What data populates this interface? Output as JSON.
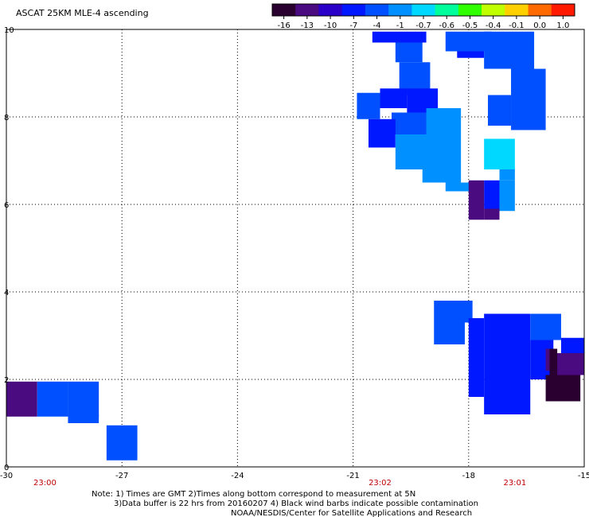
{
  "title": "ASCAT 25KM MLE-4 ascending",
  "colorbar": {
    "labels": [
      "-16",
      "-13",
      "-10",
      "-7",
      "-4",
      "-1",
      "-0.7",
      "-0.6",
      "-0.5",
      "-0.4",
      "-0.1",
      "0.0",
      "1.0"
    ],
    "colors": [
      "#2a0030",
      "#4a0a80",
      "#2a00c8",
      "#0018ff",
      "#0050ff",
      "#0090ff",
      "#00d8ff",
      "#00ff9c",
      "#30ff00",
      "#c0ff00",
      "#ffd000",
      "#ff6a00",
      "#ff1a00"
    ]
  },
  "axes": {
    "x_ticks": [
      "-30",
      "-27",
      "-24",
      "-21",
      "-18",
      "-15"
    ],
    "y_ticks": [
      "0",
      "2",
      "4",
      "6",
      "8",
      "10"
    ],
    "x_range": [
      -30,
      -15
    ],
    "y_range": [
      0,
      10
    ]
  },
  "pass_times": [
    {
      "lon": -29,
      "label": "23:00"
    },
    {
      "lon": -20.3,
      "label": "23:02"
    },
    {
      "lon": -16.8,
      "label": "23:01"
    }
  ],
  "notes": {
    "line1": "Note: 1) Times are GMT 2)Times along bottom correspond to measurement at 5N",
    "line2": "3)Data buffer is 22 hrs from 20160207 4) Black wind barbs indicate possible contamination",
    "line3": "NOAA/NESDIS/Center for Satellite Applications and Research"
  },
  "chart_data": {
    "type": "heatmap",
    "title": "ASCAT 25KM MLE-4 ascending",
    "xlim": [
      -30,
      -15
    ],
    "ylim": [
      0,
      10
    ],
    "cells": [
      {
        "lon0": -30,
        "lon1": -29.2,
        "lat0": 1.15,
        "lat1": 1.95,
        "color": "#4a0a80"
      },
      {
        "lon0": -29.2,
        "lon1": -28.4,
        "lat0": 1.15,
        "lat1": 1.95,
        "color": "#0050ff"
      },
      {
        "lon0": -28.4,
        "lon1": -27.6,
        "lat0": 1.15,
        "lat1": 1.95,
        "color": "#0050ff"
      },
      {
        "lon0": -28.4,
        "lon1": -27.6,
        "lat0": 1.0,
        "lat1": 1.2,
        "color": "#0050ff"
      },
      {
        "lon0": -27.4,
        "lon1": -26.6,
        "lat0": 0.15,
        "lat1": 0.95,
        "color": "#0050ff"
      },
      {
        "lon0": -20.5,
        "lon1": -19.1,
        "lat0": 9.7,
        "lat1": 9.95,
        "color": "#0018ff"
      },
      {
        "lon0": -19.9,
        "lon1": -19.2,
        "lat0": 9.25,
        "lat1": 9.7,
        "color": "#0050ff"
      },
      {
        "lon0": -19.8,
        "lon1": -19.0,
        "lat0": 8.5,
        "lat1": 9.25,
        "color": "#0050ff"
      },
      {
        "lon0": -20.3,
        "lon1": -19.6,
        "lat0": 8.2,
        "lat1": 8.65,
        "color": "#0018ff"
      },
      {
        "lon0": -19.6,
        "lon1": -18.8,
        "lat0": 8.1,
        "lat1": 8.65,
        "color": "#0018ff"
      },
      {
        "lon0": -20.9,
        "lon1": -20.3,
        "lat0": 7.95,
        "lat1": 8.55,
        "color": "#0050ff"
      },
      {
        "lon0": -20.0,
        "lon1": -19.0,
        "lat0": 7.6,
        "lat1": 8.1,
        "color": "#0050ff"
      },
      {
        "lon0": -19.1,
        "lon1": -18.2,
        "lat0": 7.6,
        "lat1": 8.2,
        "color": "#0090ff"
      },
      {
        "lon0": -20.6,
        "lon1": -19.9,
        "lat0": 7.3,
        "lat1": 7.95,
        "color": "#0018ff"
      },
      {
        "lon0": -19.9,
        "lon1": -18.2,
        "lat0": 6.8,
        "lat1": 7.6,
        "color": "#0090ff"
      },
      {
        "lon0": -19.2,
        "lon1": -18.2,
        "lat0": 6.5,
        "lat1": 6.8,
        "color": "#0090ff"
      },
      {
        "lon0": -18.6,
        "lon1": -17.8,
        "lat0": 6.3,
        "lat1": 6.5,
        "color": "#0090ff"
      },
      {
        "lon0": -18.6,
        "lon1": -17.4,
        "lat0": 9.5,
        "lat1": 9.95,
        "color": "#0050ff"
      },
      {
        "lon0": -18.3,
        "lon1": -17.6,
        "lat0": 9.35,
        "lat1": 9.5,
        "color": "#0018ff"
      },
      {
        "lon0": -17.6,
        "lon1": -16.3,
        "lat0": 9.1,
        "lat1": 9.95,
        "color": "#0050ff"
      },
      {
        "lon0": -16.9,
        "lon1": -16.0,
        "lat0": 8.5,
        "lat1": 9.1,
        "color": "#0050ff"
      },
      {
        "lon0": -17.5,
        "lon1": -16.9,
        "lat0": 7.8,
        "lat1": 8.5,
        "color": "#0050ff"
      },
      {
        "lon0": -16.9,
        "lon1": -16.0,
        "lat0": 7.7,
        "lat1": 8.5,
        "color": "#0050ff"
      },
      {
        "lon0": -17.6,
        "lon1": -16.8,
        "lat0": 6.8,
        "lat1": 7.5,
        "color": "#00d8ff"
      },
      {
        "lon0": -17.2,
        "lon1": -16.8,
        "lat0": 6.55,
        "lat1": 6.8,
        "color": "#0090ff"
      },
      {
        "lon0": -17.6,
        "lon1": -17.2,
        "lat0": 5.9,
        "lat1": 6.55,
        "color": "#0018ff"
      },
      {
        "lon0": -17.2,
        "lon1": -16.8,
        "lat0": 5.85,
        "lat1": 6.55,
        "color": "#0090ff"
      },
      {
        "lon0": -18.0,
        "lon1": -17.6,
        "lat0": 5.65,
        "lat1": 6.55,
        "color": "#4a0a80"
      },
      {
        "lon0": -17.6,
        "lon1": -17.2,
        "lat0": 5.65,
        "lat1": 5.9,
        "color": "#4a0a80"
      },
      {
        "lon0": -18.9,
        "lon1": -17.9,
        "lat0": 3.3,
        "lat1": 3.8,
        "color": "#0050ff"
      },
      {
        "lon0": -18.9,
        "lon1": -18.1,
        "lat0": 2.8,
        "lat1": 3.3,
        "color": "#0050ff"
      },
      {
        "lon0": -18.0,
        "lon1": -17.6,
        "lat0": 1.6,
        "lat1": 3.4,
        "color": "#0018ff"
      },
      {
        "lon0": -17.6,
        "lon1": -16.4,
        "lat0": 1.2,
        "lat1": 3.5,
        "color": "#0018ff"
      },
      {
        "lon0": -16.4,
        "lon1": -15.6,
        "lat0": 2.9,
        "lat1": 3.5,
        "color": "#0050ff"
      },
      {
        "lon0": -16.4,
        "lon1": -15.8,
        "lat0": 2.0,
        "lat1": 2.9,
        "color": "#0018ff"
      },
      {
        "lon0": -15.6,
        "lon1": -15.0,
        "lat0": 2.6,
        "lat1": 2.95,
        "color": "#0018ff"
      },
      {
        "lon0": -16.0,
        "lon1": -15.8,
        "lat0": 2.2,
        "lat1": 2.7,
        "color": "#4a0a80"
      },
      {
        "lon0": -15.8,
        "lon1": -15.0,
        "lat0": 2.1,
        "lat1": 2.6,
        "color": "#4a0a80"
      },
      {
        "lon0": -15.9,
        "lon1": -15.7,
        "lat0": 2.1,
        "lat1": 2.7,
        "color": "#2a0030"
      },
      {
        "lon0": -16.0,
        "lon1": -15.1,
        "lat0": 1.5,
        "lat1": 2.1,
        "color": "#2a0030"
      }
    ]
  }
}
